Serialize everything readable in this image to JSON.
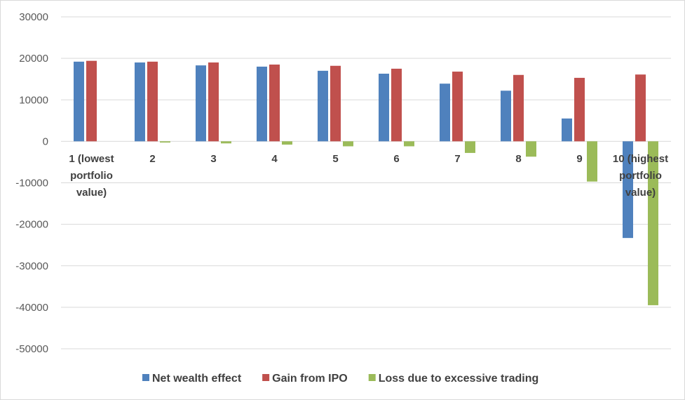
{
  "chart_data": {
    "type": "bar",
    "title": "",
    "xlabel": "",
    "ylabel": "",
    "categories": [
      [
        "1 (lowest",
        "portfolio",
        "value)"
      ],
      [
        "2"
      ],
      [
        "3"
      ],
      [
        "4"
      ],
      [
        "5"
      ],
      [
        "6"
      ],
      [
        "7"
      ],
      [
        "8"
      ],
      [
        "9"
      ],
      [
        "10 (highest",
        "portfolio",
        "value)"
      ]
    ],
    "series": [
      {
        "name": "Net wealth effect",
        "color": "#4f81bd",
        "values": [
          19200,
          19000,
          18300,
          18000,
          17000,
          16300,
          13900,
          12200,
          5500,
          -23300
        ]
      },
      {
        "name": "Gain from IPO",
        "color": "#c0504d",
        "values": [
          19400,
          19200,
          19000,
          18500,
          18200,
          17500,
          16800,
          16000,
          15300,
          16100
        ]
      },
      {
        "name": "Loss due to excessive trading",
        "color": "#9bbb59",
        "values": [
          0,
          -300,
          -500,
          -800,
          -1200,
          -1200,
          -2800,
          -3700,
          -9700,
          -39500
        ]
      }
    ],
    "ylim": [
      -50000,
      30000
    ],
    "yticks": [
      30000,
      20000,
      10000,
      0,
      -10000,
      -20000,
      -30000,
      -40000,
      -50000
    ],
    "grid": true,
    "legend_position": "bottom"
  }
}
